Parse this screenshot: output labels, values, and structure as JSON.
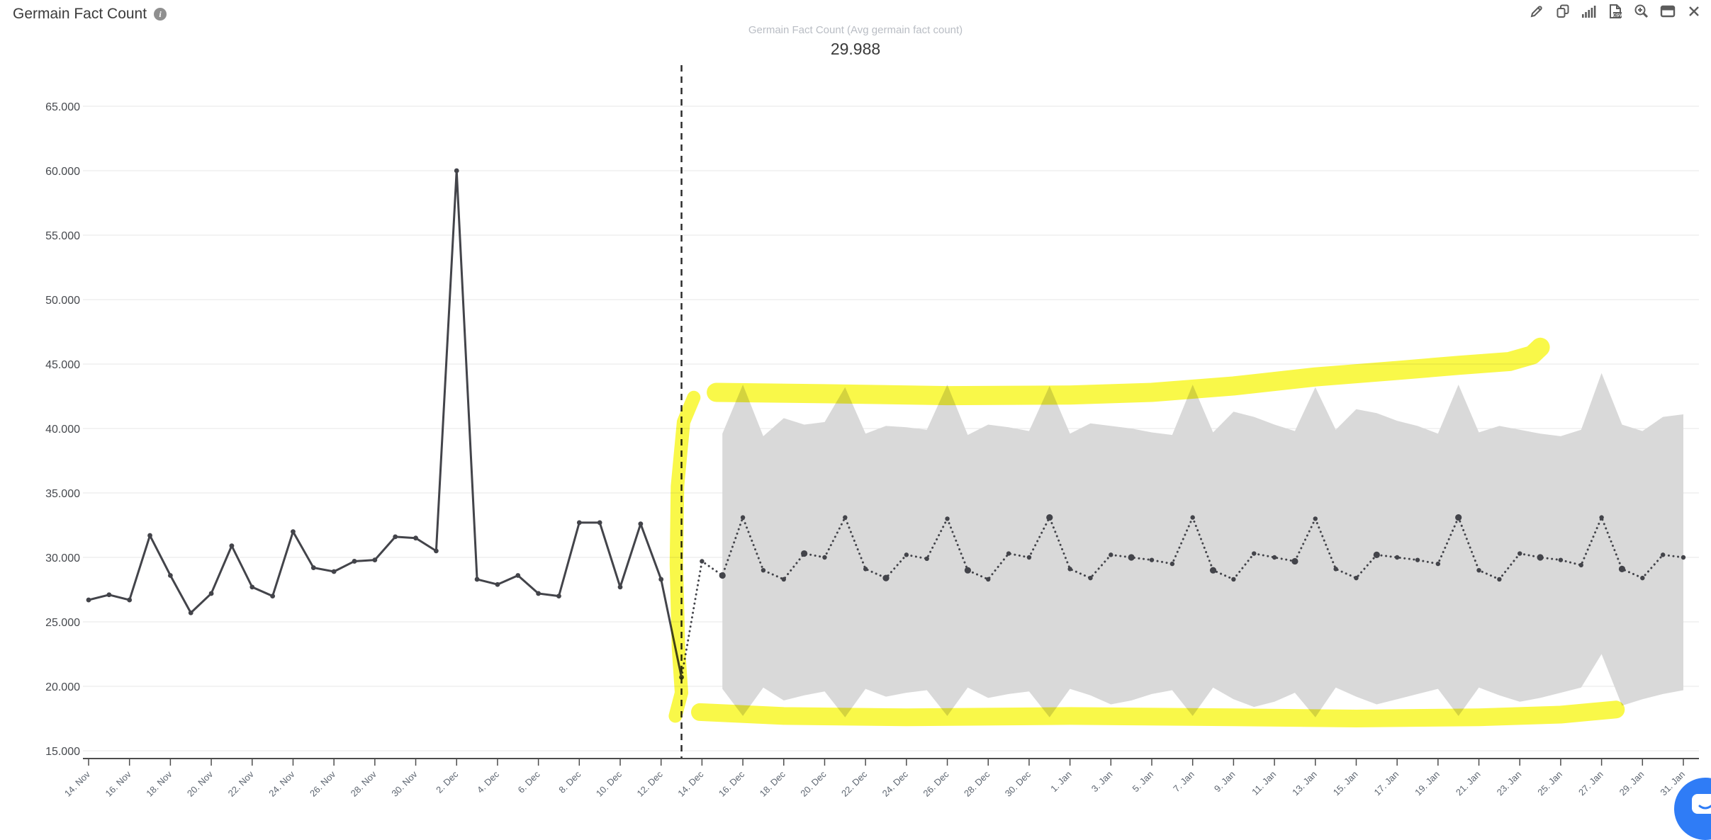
{
  "header": {
    "title": "Germain Fact Count"
  },
  "toolbar": {
    "icons": [
      "edit-pencil-icon",
      "copy-icon",
      "bar-stats-icon",
      "export-csv-icon",
      "zoom-in-icon",
      "window-icon",
      "close-icon"
    ]
  },
  "chat": {
    "icon": "chat-bubble-icon"
  },
  "chart_data": {
    "type": "line",
    "title": "Germain Fact Count (Avg germain fact count)",
    "headline_value": "29.988",
    "ylim": [
      15000,
      65000
    ],
    "y_tick_step": 5000,
    "y_tick_labels": [
      "15.000",
      "20.000",
      "25.000",
      "30.000",
      "35.000",
      "40.000",
      "45.000",
      "50.000",
      "55.000",
      "60.000",
      "65.000"
    ],
    "x_tick_labels": [
      "14. Nov",
      "16. Nov",
      "18. Nov",
      "20. Nov",
      "22. Nov",
      "24. Nov",
      "26. Nov",
      "28. Nov",
      "30. Nov",
      "2. Dec",
      "4. Dec",
      "6. Dec",
      "8. Dec",
      "10. Dec",
      "12. Dec",
      "14. Dec",
      "16. Dec",
      "18. Dec",
      "20. Dec",
      "22. Dec",
      "24. Dec",
      "26. Dec",
      "28. Dec",
      "30. Dec",
      "1. Jan",
      "3. Jan",
      "5. Jan",
      "7. Jan",
      "9. Jan",
      "11. Jan",
      "13. Jan",
      "15. Jan",
      "17. Jan",
      "19. Jan",
      "21. Jan",
      "23. Jan",
      "25. Jan",
      "27. Jan",
      "29. Jan",
      "31. Jan"
    ],
    "days_total": 78,
    "days_per_tick": 2,
    "grid": true,
    "legend": "none",
    "forecast_start_day": 29,
    "series": [
      {
        "name": "Historical",
        "style": "solid",
        "start_day": 0,
        "values": [
          26700,
          27100,
          26700,
          31700,
          28600,
          25700,
          27200,
          30900,
          27700,
          27000,
          32000,
          29200,
          28900,
          29700,
          29800,
          31600,
          31500,
          30500,
          60000,
          28300,
          27900,
          28600,
          27200,
          27000,
          32700,
          32700,
          27700,
          32600,
          28300,
          20700
        ]
      },
      {
        "name": "Forecast",
        "style": "dotted",
        "start_day": 29,
        "values": [
          20700,
          29700,
          28600,
          33100,
          29000,
          28300,
          30300,
          30000,
          33100,
          29100,
          28400,
          30200,
          29900,
          33000,
          29000,
          28300,
          30300,
          30000,
          33100,
          29100,
          28400,
          30200,
          30000,
          29800,
          29500,
          33100,
          29000,
          28300,
          30300,
          30000,
          29700,
          33000,
          29100,
          28400,
          30200,
          30000,
          29800,
          29500,
          33100,
          29000,
          28300,
          30300,
          30000,
          29800,
          29400,
          33100,
          29100,
          28400,
          30200,
          30000
        ]
      },
      {
        "name": "Confidence band",
        "style": "band",
        "start_day": 31,
        "upper": [
          39600,
          43400,
          39400,
          40800,
          40300,
          40500,
          43200,
          39600,
          40200,
          40100,
          39900,
          43400,
          39500,
          40300,
          40100,
          39800,
          43300,
          39600,
          40400,
          40200,
          40000,
          39700,
          39500,
          43400,
          39700,
          41300,
          40900,
          40300,
          39800,
          43200,
          39900,
          41500,
          41200,
          40600,
          40200,
          39600,
          43400,
          39700,
          40200,
          39900,
          39600,
          39400,
          39900,
          44300,
          40300,
          39800,
          40900,
          41100
        ],
        "lower": [
          19800,
          17700,
          19900,
          18900,
          19300,
          19600,
          17600,
          19800,
          19200,
          19500,
          19700,
          17700,
          19900,
          19100,
          19400,
          19600,
          17600,
          19800,
          19300,
          18600,
          18900,
          19400,
          19700,
          17700,
          19900,
          19000,
          18400,
          18800,
          19500,
          17600,
          19900,
          19200,
          18600,
          19000,
          19400,
          19800,
          17700,
          19900,
          19300,
          18800,
          19100,
          19500,
          19900,
          22500,
          18500,
          19000,
          19400,
          19700
        ]
      }
    ],
    "annotations": {
      "divider_day": 29,
      "highlights": [
        {
          "name": "top-highlight",
          "width": 27,
          "points": [
            [
              30.7,
              42800
            ],
            [
              36,
              42700
            ],
            [
              42,
              42550
            ],
            [
              48,
              42600
            ],
            [
              52,
              42800
            ],
            [
              56,
              43300
            ],
            [
              60,
              44000
            ],
            [
              64,
              44500
            ],
            [
              67,
              44900
            ],
            [
              69.5,
              45200
            ],
            [
              70.6,
              45700
            ],
            [
              71.0,
              46300
            ]
          ]
        },
        {
          "name": "bottom-highlight",
          "width": 25,
          "points": [
            [
              29.9,
              18000
            ],
            [
              34,
              17700
            ],
            [
              40,
              17600
            ],
            [
              48,
              17700
            ],
            [
              56,
              17600
            ],
            [
              62,
              17500
            ],
            [
              68,
              17600
            ],
            [
              72,
              17800
            ],
            [
              74.7,
              18200
            ]
          ]
        },
        {
          "name": "vertical-highlight",
          "width": 19,
          "points": [
            [
              29.6,
              42400
            ],
            [
              29.1,
              40500
            ],
            [
              28.8,
              35500
            ],
            [
              28.75,
              29500
            ],
            [
              28.85,
              23000
            ],
            [
              29.0,
              19500
            ],
            [
              28.7,
              17700
            ]
          ]
        }
      ]
    },
    "colors": {
      "line": "#43444a",
      "band": "#d9d9d9",
      "highlight": "#f8f73a",
      "divider": "#2b2b2b",
      "grid": "#e7e7e7",
      "axis": "#4d4d4d",
      "x_label": "#5d6570",
      "y_label": "#46494e",
      "accent_blue": "#2f7cf6"
    }
  }
}
